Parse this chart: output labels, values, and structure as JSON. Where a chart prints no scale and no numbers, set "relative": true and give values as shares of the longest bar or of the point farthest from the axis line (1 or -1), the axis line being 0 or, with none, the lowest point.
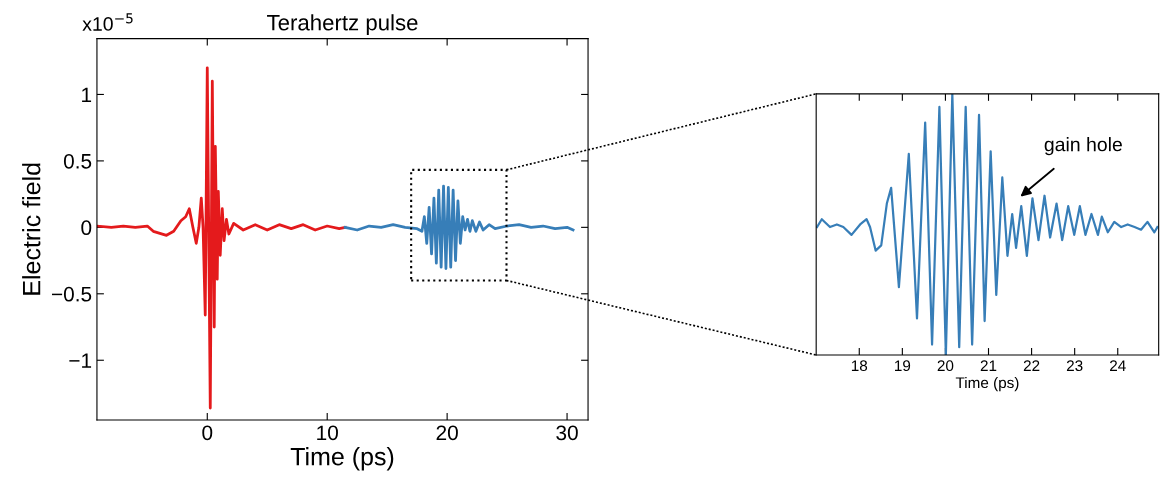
{
  "chart_data": [
    {
      "type": "line",
      "title": "Terahertz pulse",
      "xlabel": "Time (ps)",
      "ylabel": "Electric field",
      "annotations": [
        "x10$^{−5}$"
      ],
      "xlim": [
        -9.2,
        31.75
      ],
      "ylim": [
        -1.45,
        1.42
      ],
      "xticks": [
        0,
        10,
        20,
        30
      ],
      "yticks": [
        {
          "value": -1,
          "label": "−1"
        },
        {
          "value": -0.5,
          "label": "−0.5"
        },
        0,
        0.5,
        1
      ],
      "grid": false,
      "legend": false,
      "series": [
        {
          "color": "#e41a1c",
          "x": [
            -9.2,
            -8,
            -7,
            -6,
            -5,
            -4.5,
            -3.4,
            -2.8,
            -2.2,
            -1.8,
            -1.5,
            -1.2,
            -0.92,
            -0.7,
            -0.5,
            -0.35,
            -0.17,
            0.0,
            0.25,
            0.42,
            0.58,
            0.67,
            0.83,
            0.92,
            1.08,
            1.25,
            1.4,
            1.6,
            1.8,
            2.2,
            3,
            4,
            5,
            6,
            7,
            8,
            9,
            10,
            11,
            11.5
          ],
          "values": [
            0.01,
            0.0,
            0.01,
            0.0,
            0.01,
            -0.03,
            -0.06,
            -0.03,
            0.05,
            0.08,
            0.14,
            0.0,
            -0.12,
            0.0,
            0.22,
            0.0,
            -0.66,
            1.2,
            -1.36,
            1.1,
            -0.75,
            0.61,
            -0.39,
            0.27,
            -0.21,
            0.14,
            -0.1,
            0.06,
            -0.05,
            0.03,
            -0.02,
            0.02,
            -0.02,
            0.02,
            -0.01,
            0.02,
            -0.02,
            0.01,
            -0.01,
            0.0
          ]
        },
        {
          "color": "#377eb8",
          "x": [
            11.5,
            12.5,
            13.5,
            14.5,
            15.5,
            16.5,
            17.5,
            17.9,
            18.1,
            18.3,
            18.5,
            18.7,
            18.9,
            19.1,
            19.3,
            19.5,
            19.7,
            19.9,
            20.1,
            20.3,
            20.5,
            20.7,
            20.9,
            21.1,
            21.3,
            21.5,
            21.7,
            21.9,
            22.1,
            22.4,
            22.7,
            23.0,
            23.5,
            24,
            25,
            26,
            27,
            28,
            29,
            30,
            30.5
          ],
          "values": [
            0.0,
            -0.02,
            0.01,
            0.0,
            0.02,
            0.0,
            -0.01,
            -0.03,
            0.08,
            -0.12,
            0.15,
            -0.2,
            0.22,
            -0.27,
            0.28,
            -0.3,
            0.31,
            -0.31,
            0.3,
            -0.3,
            0.28,
            -0.25,
            0.2,
            -0.12,
            0.08,
            -0.02,
            0.06,
            -0.03,
            0.05,
            -0.03,
            0.04,
            -0.02,
            0.02,
            -0.01,
            0.01,
            0.02,
            0.0,
            0.01,
            -0.01,
            0.0,
            -0.02
          ]
        }
      ]
    },
    {
      "type": "line",
      "xlabel": "Time (ps)",
      "relative": true,
      "xlim": [
        17.0,
        24.95
      ],
      "xticks": [
        18,
        19,
        20,
        21,
        22,
        23,
        24
      ],
      "grid": false,
      "legend": false,
      "annotations": [
        "gain hole"
      ],
      "series": [
        {
          "color": "#377eb8",
          "x": [
            17.02,
            17.13,
            17.32,
            17.48,
            17.63,
            17.82,
            18.02,
            18.17,
            18.25,
            18.38,
            18.51,
            18.64,
            18.74,
            18.92,
            19.15,
            19.34,
            19.53,
            19.69,
            19.86,
            20.01,
            20.16,
            20.32,
            20.47,
            20.62,
            20.78,
            20.91,
            21.05,
            21.18,
            21.32,
            21.44,
            21.55,
            21.64,
            21.76,
            21.89,
            22.02,
            22.16,
            22.3,
            22.43,
            22.58,
            22.71,
            22.85,
            22.99,
            23.12,
            23.25,
            23.39,
            23.54,
            23.63,
            23.77,
            23.92,
            24.08,
            24.23,
            24.39,
            24.54,
            24.69,
            24.85,
            24.92
          ],
          "values": [
            0.49,
            0.52,
            0.49,
            0.5,
            0.49,
            0.46,
            0.5,
            0.52,
            0.49,
            0.4,
            0.42,
            0.58,
            0.64,
            0.26,
            0.77,
            0.14,
            0.89,
            0.04,
            0.95,
            0.0,
            1.0,
            0.03,
            0.95,
            0.04,
            0.92,
            0.13,
            0.78,
            0.23,
            0.68,
            0.38,
            0.54,
            0.41,
            0.57,
            0.38,
            0.6,
            0.44,
            0.61,
            0.45,
            0.58,
            0.44,
            0.57,
            0.46,
            0.57,
            0.46,
            0.54,
            0.46,
            0.53,
            0.47,
            0.51,
            0.49,
            0.5,
            0.49,
            0.48,
            0.51,
            0.47,
            0.49
          ]
        }
      ]
    }
  ]
}
